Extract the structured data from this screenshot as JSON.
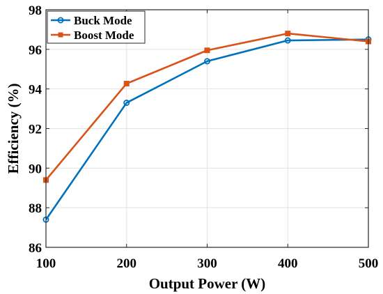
{
  "chart_data": {
    "type": "line",
    "title": "",
    "xlabel": "Output Power (W)",
    "ylabel": "Efficiency (%)",
    "x": [
      100,
      200,
      300,
      400,
      500
    ],
    "xticks": [
      "100",
      "200",
      "300",
      "400",
      "500"
    ],
    "yticks": [
      "86",
      "88",
      "90",
      "92",
      "94",
      "96",
      "98"
    ],
    "xlim": [
      100,
      500
    ],
    "ylim": [
      86,
      98
    ],
    "grid": true,
    "legend_position": "top-left",
    "series": [
      {
        "name": "Buck Mode",
        "values": [
          87.4,
          93.3,
          95.4,
          96.45,
          96.5
        ],
        "color": "#0072BD",
        "marker": "circle"
      },
      {
        "name": "Boost Mode",
        "values": [
          89.4,
          94.27,
          95.95,
          96.8,
          96.4
        ],
        "color": "#D95319",
        "marker": "square"
      }
    ]
  }
}
